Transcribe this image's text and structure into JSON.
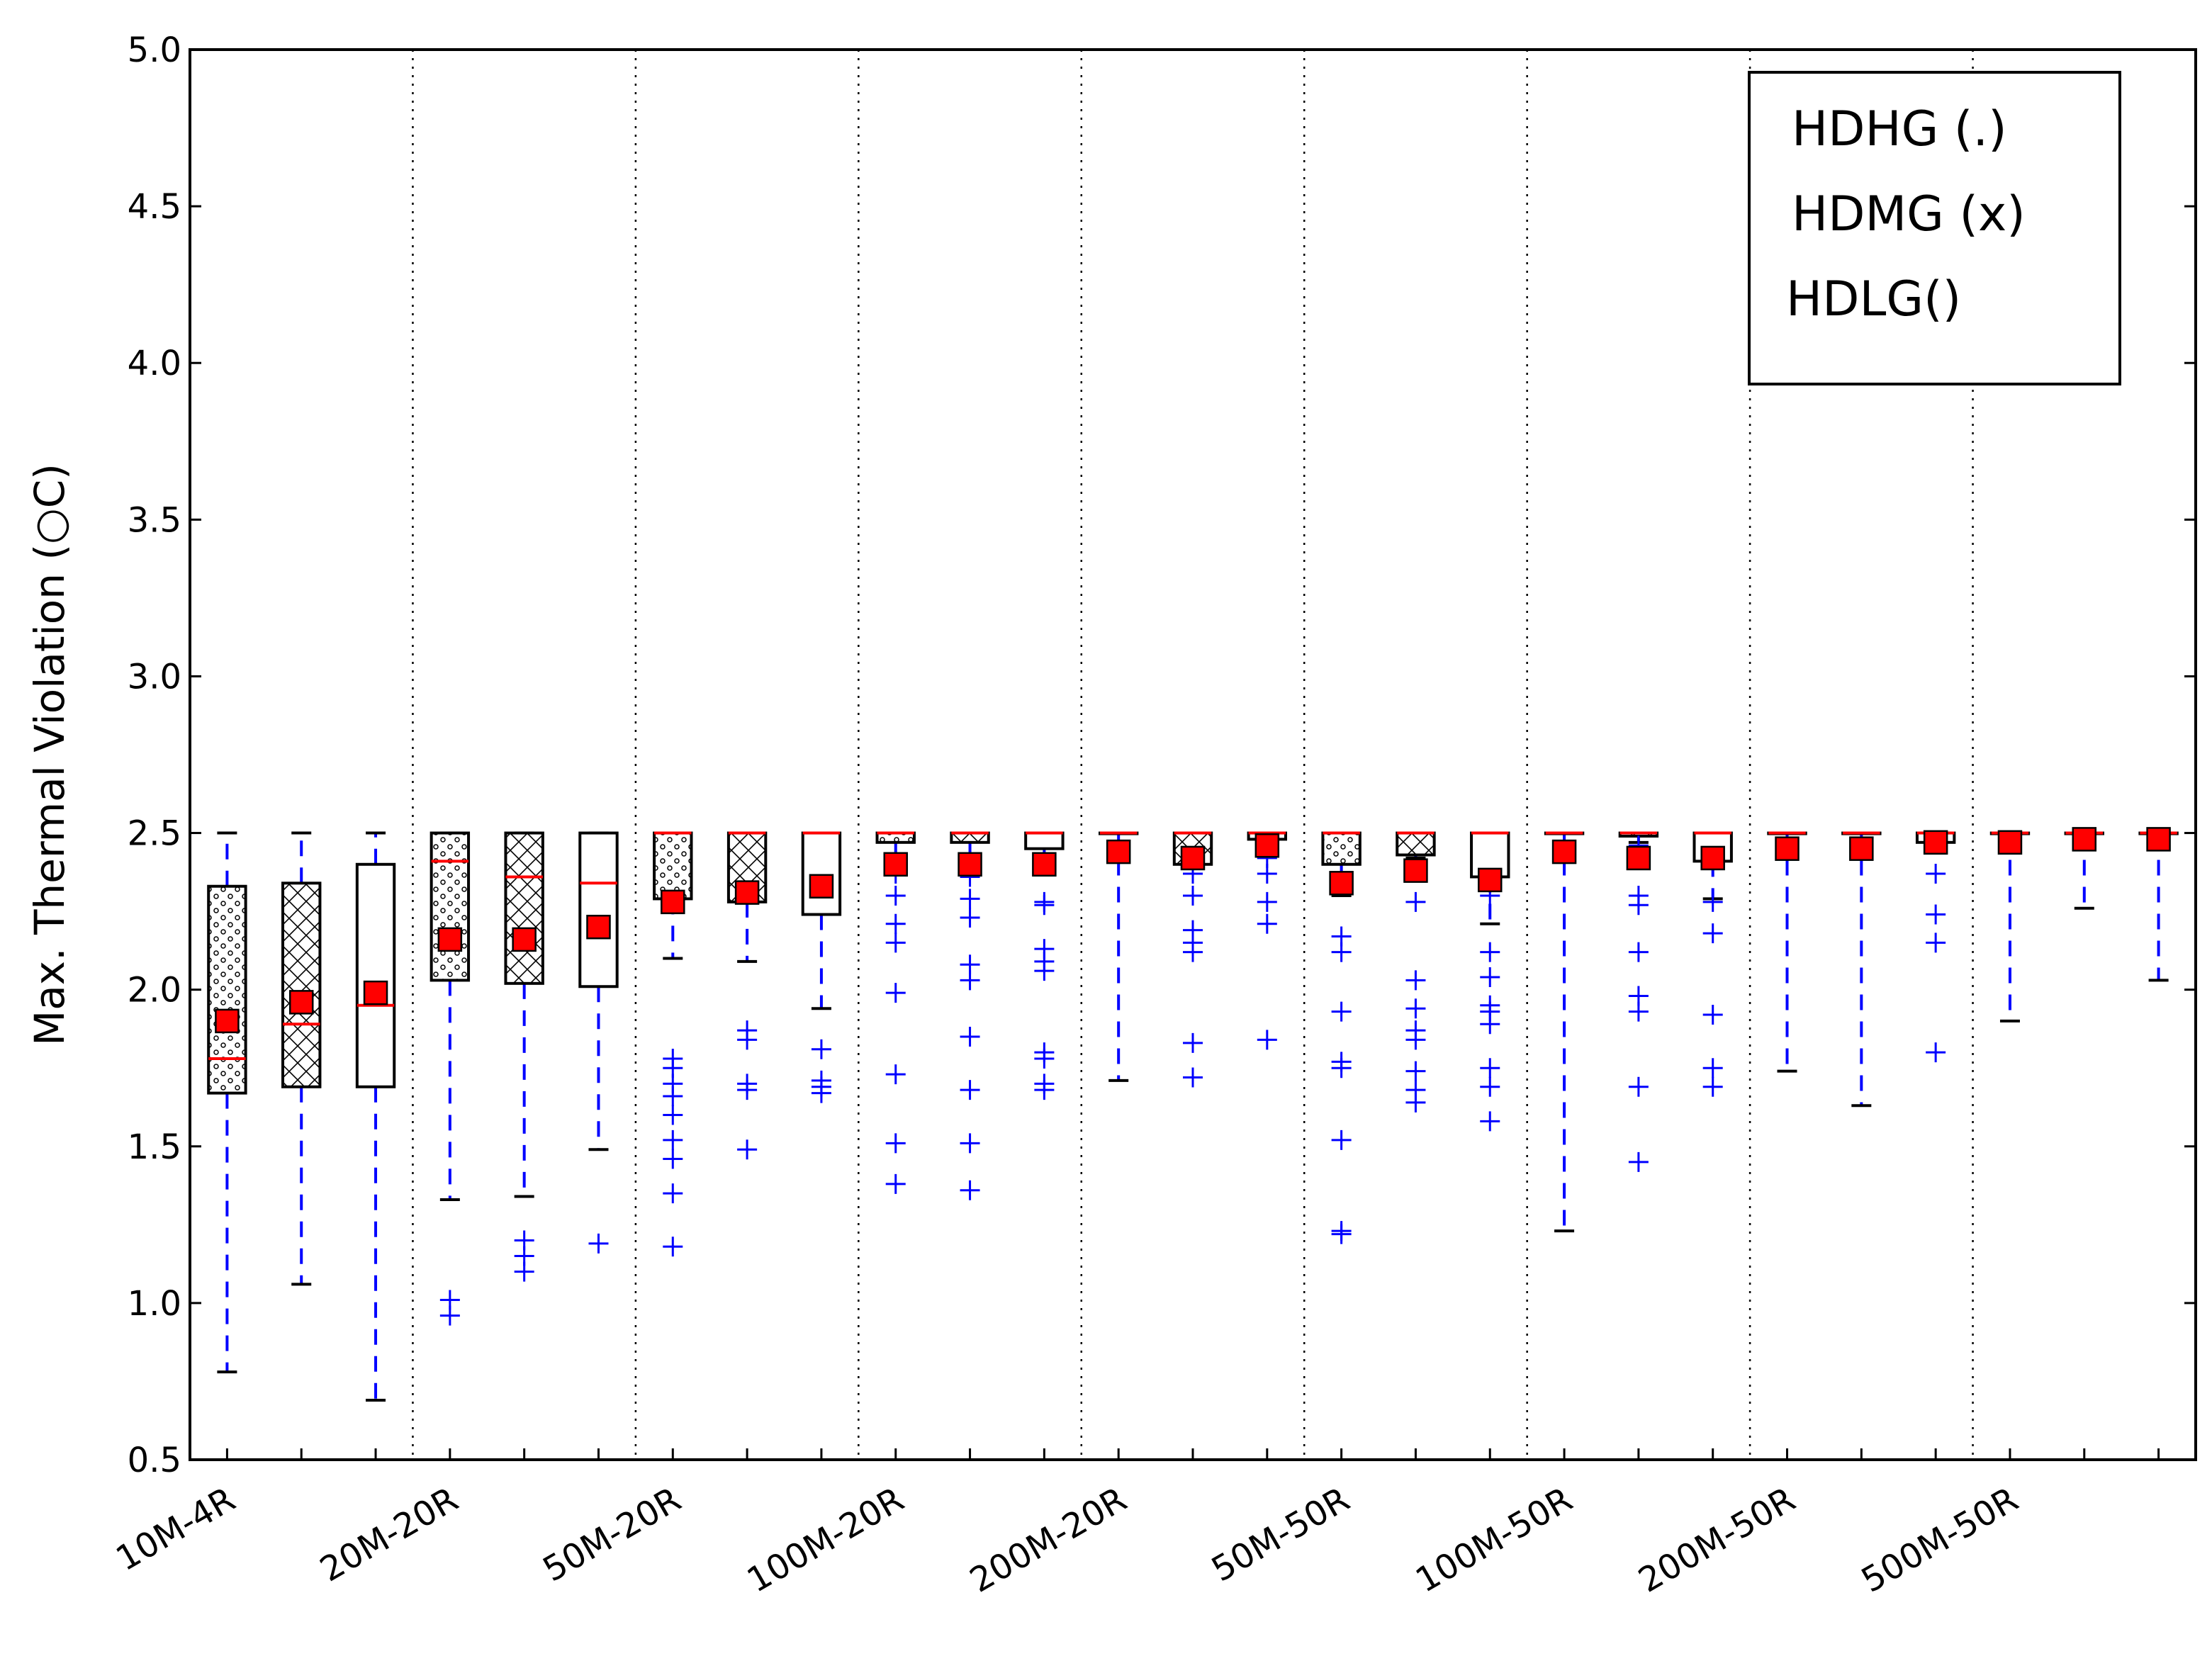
{
  "chart_data": {
    "type": "box",
    "ylabel": "Max. Thermal Violation (○C)",
    "ylim": [
      0.5,
      5.0
    ],
    "yticks": [
      "0.5",
      "1.0",
      "1.5",
      "2.0",
      "2.5",
      "3.0",
      "3.5",
      "4.0",
      "4.5",
      "5.0"
    ],
    "grid": "vertical dotted separators between groups",
    "categories": [
      "10M-4R",
      "20M-20R",
      "50M-20R",
      "100M-20R",
      "200M-20R",
      "50M-50R",
      "100M-50R",
      "200M-50R",
      "500M-50R"
    ],
    "legend": {
      "position": "top-right",
      "entries": [
        "HDHG (.)",
        "HDMG (x)",
        "HDLG()"
      ]
    },
    "series": [
      {
        "name": "HDHG (.)",
        "hatch": "dots",
        "boxes": [
          {
            "whislo": 0.78,
            "q1": 1.67,
            "med": 1.78,
            "q3": 2.33,
            "whishi": 2.5,
            "mean": 1.9,
            "fliers": []
          },
          {
            "whislo": 1.33,
            "q1": 2.03,
            "med": 2.41,
            "q3": 2.5,
            "whishi": 2.5,
            "mean": 2.16,
            "fliers": [
              1.01,
              0.96
            ]
          },
          {
            "whislo": 2.1,
            "q1": 2.29,
            "med": 2.5,
            "q3": 2.5,
            "whishi": 2.5,
            "mean": 2.28,
            "fliers": [
              1.78,
              1.75,
              1.7,
              1.66,
              1.6,
              1.52,
              1.46,
              1.35,
              1.18
            ]
          },
          {
            "whislo": 2.41,
            "q1": 2.47,
            "med": 2.5,
            "q3": 2.5,
            "whishi": 2.5,
            "mean": 2.4,
            "fliers": [
              2.37,
              2.3,
              2.21,
              2.15,
              1.99,
              1.73,
              1.51,
              1.38
            ]
          },
          {
            "whislo": 1.71,
            "q1": 2.5,
            "med": 2.5,
            "q3": 2.5,
            "whishi": 2.5,
            "mean": 2.44,
            "fliers": []
          },
          {
            "whislo": 2.3,
            "q1": 2.4,
            "med": 2.5,
            "q3": 2.5,
            "whishi": 2.5,
            "mean": 2.34,
            "fliers": [
              2.17,
              2.12,
              1.93,
              1.77,
              1.75,
              1.52,
              1.23,
              1.22
            ]
          },
          {
            "whislo": 1.23,
            "q1": 2.5,
            "med": 2.5,
            "q3": 2.5,
            "whishi": 2.5,
            "mean": 2.44,
            "fliers": []
          },
          {
            "whislo": 1.74,
            "q1": 2.5,
            "med": 2.5,
            "q3": 2.5,
            "whishi": 2.5,
            "mean": 2.45,
            "fliers": []
          },
          {
            "whislo": 1.9,
            "q1": 2.5,
            "med": 2.5,
            "q3": 2.5,
            "whishi": 2.5,
            "mean": 2.47,
            "fliers": []
          }
        ]
      },
      {
        "name": "HDMG (x)",
        "hatch": "crosshatch",
        "boxes": [
          {
            "whislo": 1.06,
            "q1": 1.69,
            "med": 1.89,
            "q3": 2.34,
            "whishi": 2.5,
            "mean": 1.96,
            "fliers": []
          },
          {
            "whislo": 1.34,
            "q1": 2.02,
            "med": 2.36,
            "q3": 2.5,
            "whishi": 2.5,
            "mean": 2.16,
            "fliers": [
              1.2,
              1.15,
              1.1
            ]
          },
          {
            "whislo": 2.09,
            "q1": 2.28,
            "med": 2.5,
            "q3": 2.5,
            "whishi": 2.5,
            "mean": 2.31,
            "fliers": [
              1.87,
              1.84,
              1.7,
              1.68,
              1.49
            ]
          },
          {
            "whislo": 2.41,
            "q1": 2.47,
            "med": 2.5,
            "q3": 2.5,
            "whishi": 2.5,
            "mean": 2.4,
            "fliers": [
              2.36,
              2.29,
              2.23,
              2.08,
              2.03,
              1.85,
              1.68,
              1.51,
              1.36
            ]
          },
          {
            "whislo": 2.4,
            "q1": 2.4,
            "med": 2.5,
            "q3": 2.5,
            "whishi": 2.5,
            "mean": 2.42,
            "fliers": [
              2.37,
              2.3,
              2.19,
              2.15,
              2.12,
              1.83,
              1.72
            ]
          },
          {
            "whislo": 2.42,
            "q1": 2.43,
            "med": 2.5,
            "q3": 2.5,
            "whishi": 2.5,
            "mean": 2.38,
            "fliers": [
              2.28,
              2.03,
              1.94,
              1.87,
              1.84,
              1.74,
              1.68,
              1.64
            ]
          },
          {
            "whislo": 2.47,
            "q1": 2.49,
            "med": 2.5,
            "q3": 2.5,
            "whishi": 2.5,
            "mean": 2.42,
            "fliers": [
              2.46,
              2.3,
              2.27,
              2.12,
              1.98,
              1.93,
              1.69,
              1.45
            ]
          },
          {
            "whislo": 1.63,
            "q1": 2.5,
            "med": 2.5,
            "q3": 2.5,
            "whishi": 2.5,
            "mean": 2.45,
            "fliers": []
          },
          {
            "whislo": 2.26,
            "q1": 2.5,
            "med": 2.5,
            "q3": 2.5,
            "whishi": 2.5,
            "mean": 2.48,
            "fliers": []
          }
        ]
      },
      {
        "name": "HDLG()",
        "hatch": "none",
        "boxes": [
          {
            "whislo": 0.69,
            "q1": 1.69,
            "med": 1.95,
            "q3": 2.4,
            "whishi": 2.5,
            "mean": 1.99,
            "fliers": []
          },
          {
            "whislo": 1.49,
            "q1": 2.01,
            "med": 2.34,
            "q3": 2.5,
            "whishi": 2.5,
            "mean": 2.2,
            "fliers": [
              1.19
            ]
          },
          {
            "whislo": 1.94,
            "q1": 2.24,
            "med": 2.5,
            "q3": 2.5,
            "whishi": 2.5,
            "mean": 2.33,
            "fliers": [
              1.81,
              1.71,
              1.69,
              1.67
            ]
          },
          {
            "whislo": 2.37,
            "q1": 2.45,
            "med": 2.5,
            "q3": 2.5,
            "whishi": 2.5,
            "mean": 2.4,
            "fliers": [
              2.28,
              2.27,
              2.13,
              2.09,
              2.06,
              1.8,
              1.78,
              1.7,
              1.68
            ]
          },
          {
            "whislo": 2.44,
            "q1": 2.48,
            "med": 2.5,
            "q3": 2.5,
            "whishi": 2.5,
            "mean": 2.46,
            "fliers": [
              2.42,
              2.37,
              2.28,
              2.21,
              1.84
            ]
          },
          {
            "whislo": 2.21,
            "q1": 2.36,
            "med": 2.5,
            "q3": 2.5,
            "whishi": 2.5,
            "mean": 2.35,
            "fliers": [
              2.3,
              2.12,
              2.04,
              1.95,
              1.93,
              1.89,
              1.75,
              1.69,
              1.58
            ]
          },
          {
            "whislo": 2.29,
            "q1": 2.41,
            "med": 2.5,
            "q3": 2.5,
            "whishi": 2.5,
            "mean": 2.42,
            "fliers": [
              2.28,
              2.18,
              1.92,
              1.75,
              1.69
            ]
          },
          {
            "whislo": 2.44,
            "q1": 2.47,
            "med": 2.5,
            "q3": 2.5,
            "whishi": 2.5,
            "mean": 2.47,
            "fliers": [
              2.37,
              2.24,
              2.15,
              1.8
            ]
          },
          {
            "whislo": 2.03,
            "q1": 2.5,
            "med": 2.5,
            "q3": 2.5,
            "whishi": 2.5,
            "mean": 2.48,
            "fliers": []
          }
        ]
      }
    ]
  }
}
